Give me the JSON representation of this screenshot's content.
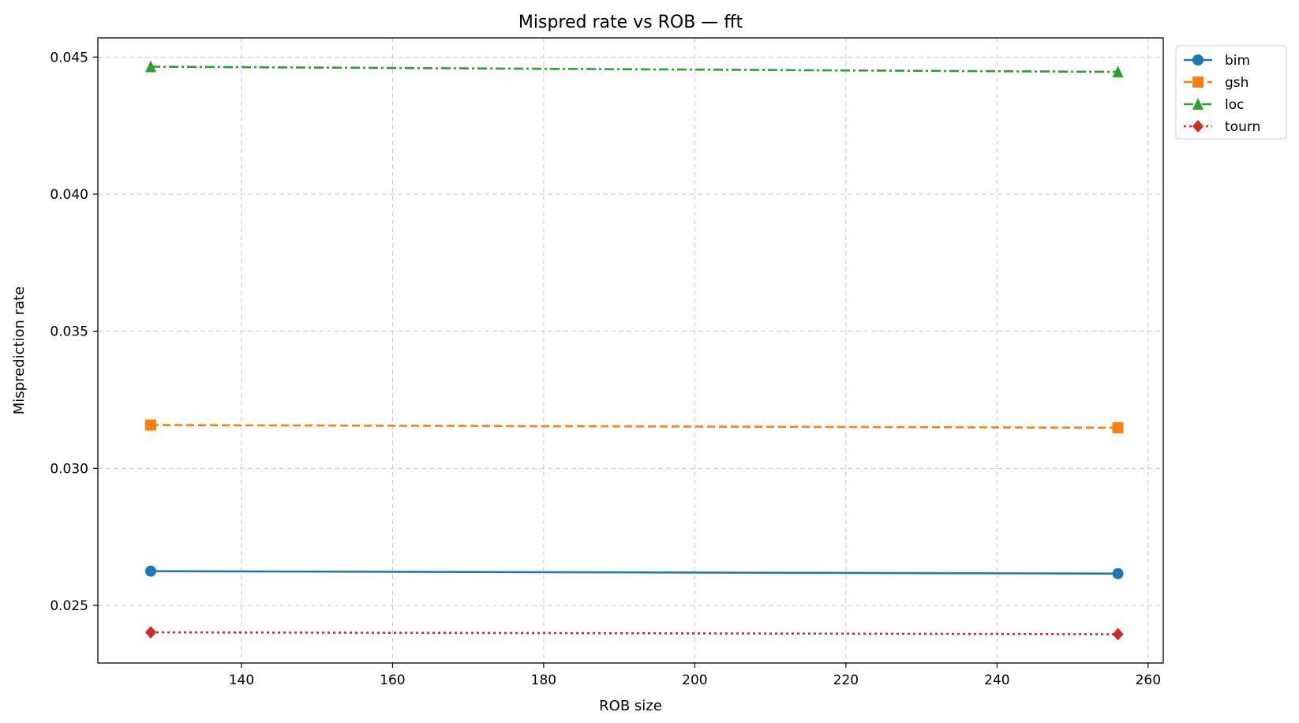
{
  "chart_data": {
    "type": "line",
    "title": "Mispred rate vs ROB — fft",
    "xlabel": "ROB size",
    "ylabel": "Misprediction rate",
    "xlim": [
      121,
      262
    ],
    "ylim": [
      0.0229,
      0.0457
    ],
    "xticks": [
      140,
      160,
      180,
      200,
      220,
      240,
      260
    ],
    "yticks": [
      0.025,
      0.03,
      0.035,
      0.04,
      0.045
    ],
    "ytick_labels": [
      "0.025",
      "0.030",
      "0.035",
      "0.040",
      "0.045"
    ],
    "grid": true,
    "legend_position": "outside-top-right",
    "x": [
      128,
      256
    ],
    "series": [
      {
        "name": "bim",
        "values": [
          0.02625,
          0.02616
        ],
        "color": "#1f77b4",
        "marker": "circle",
        "linestyle": "solid"
      },
      {
        "name": "gsh",
        "values": [
          0.03158,
          0.03148
        ],
        "color": "#ff7f0e",
        "marker": "square",
        "linestyle": "dashed"
      },
      {
        "name": "loc",
        "values": [
          0.04465,
          0.04446
        ],
        "color": "#2ca02c",
        "marker": "triangle",
        "linestyle": "dashdot"
      },
      {
        "name": "tourn",
        "values": [
          0.02402,
          0.02395
        ],
        "color": "#d62728",
        "marker": "diamond",
        "linestyle": "dotted"
      }
    ]
  }
}
